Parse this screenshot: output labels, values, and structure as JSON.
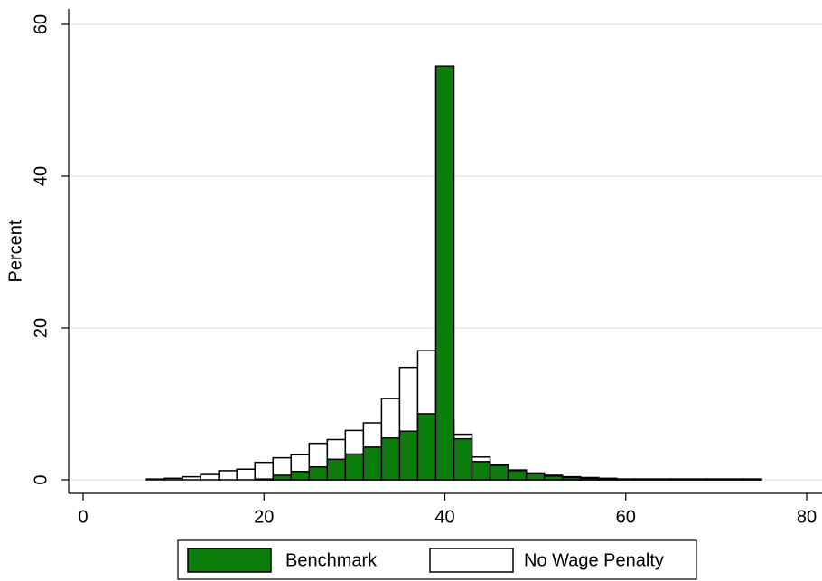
{
  "chart_data": {
    "type": "histogram",
    "ylabel": "Percent",
    "bins": [
      7,
      9,
      11,
      13,
      15,
      17,
      19,
      21,
      23,
      25,
      27,
      29,
      31,
      33,
      35,
      37,
      39,
      41,
      43,
      45,
      47,
      49,
      51,
      53,
      55,
      57,
      59,
      61,
      63,
      65,
      67,
      69,
      71,
      73,
      75
    ],
    "series": [
      {
        "name": "No Wage Penalty",
        "color": "#ffffff",
        "values": [
          0.1,
          0.2,
          0.4,
          0.7,
          1.2,
          1.4,
          2.3,
          2.9,
          3.3,
          4.8,
          5.3,
          6.5,
          7.5,
          10.7,
          14.8,
          17.0,
          7.8,
          6.0,
          3.0,
          2.0,
          1.3,
          0.9,
          0.6,
          0.4,
          0.3,
          0.2,
          0.1,
          0.1,
          0.1,
          0.1,
          0.1,
          0.1,
          0.1,
          0.1
        ]
      },
      {
        "name": "Benchmark",
        "color": "#0b7d0b",
        "values": [
          0,
          0,
          0,
          0,
          0,
          0,
          0.1,
          0.6,
          1.1,
          1.7,
          2.7,
          3.4,
          4.3,
          5.5,
          6.4,
          8.7,
          54.5,
          5.4,
          2.4,
          1.9,
          1.2,
          0.8,
          0.5,
          0.3,
          0.2,
          0.15,
          0.1,
          0.1,
          0.1,
          0.1,
          0.1,
          0.1,
          0.1,
          0.1
        ]
      }
    ],
    "xlim": [
      0,
      80
    ],
    "xticks": [
      0,
      20,
      40,
      60,
      80
    ],
    "ylim": [
      0,
      60
    ],
    "yticks": [
      0,
      20,
      40,
      60
    ],
    "grid": true
  }
}
